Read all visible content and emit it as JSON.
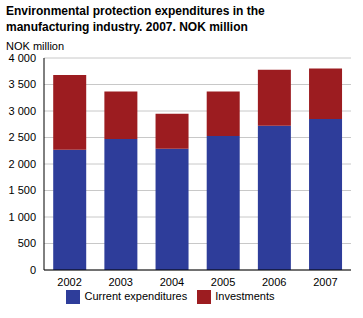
{
  "chart_data": {
    "type": "bar",
    "title": "Environmental protection expenditures in the manufacturing industry. 2007. NOK million",
    "y_label": "NOK million",
    "categories": [
      "2002",
      "2003",
      "2004",
      "2005",
      "2006",
      "2007"
    ],
    "series": [
      {
        "name": "Current expenditures",
        "color": "#2e3d9a",
        "values": [
          2270,
          2470,
          2290,
          2530,
          2720,
          2850
        ]
      },
      {
        "name": "Investments",
        "color": "#9c1c20",
        "values": [
          1410,
          900,
          660,
          840,
          1060,
          950
        ]
      }
    ],
    "stacked": true,
    "ylim": [
      0,
      4000
    ],
    "yticks": [
      0,
      500,
      {
        "value": 1000,
        "label": "1 000"
      },
      {
        "value": 1500,
        "label": "1 500"
      },
      {
        "value": 2000,
        "label": "2 000"
      },
      {
        "value": 2500,
        "label": "2 500"
      },
      {
        "value": 3000,
        "label": "3 000"
      },
      {
        "value": 3500,
        "label": "3 500"
      },
      {
        "value": 4000,
        "label": "4 000"
      }
    ],
    "grid": true,
    "legend": "bottom"
  }
}
